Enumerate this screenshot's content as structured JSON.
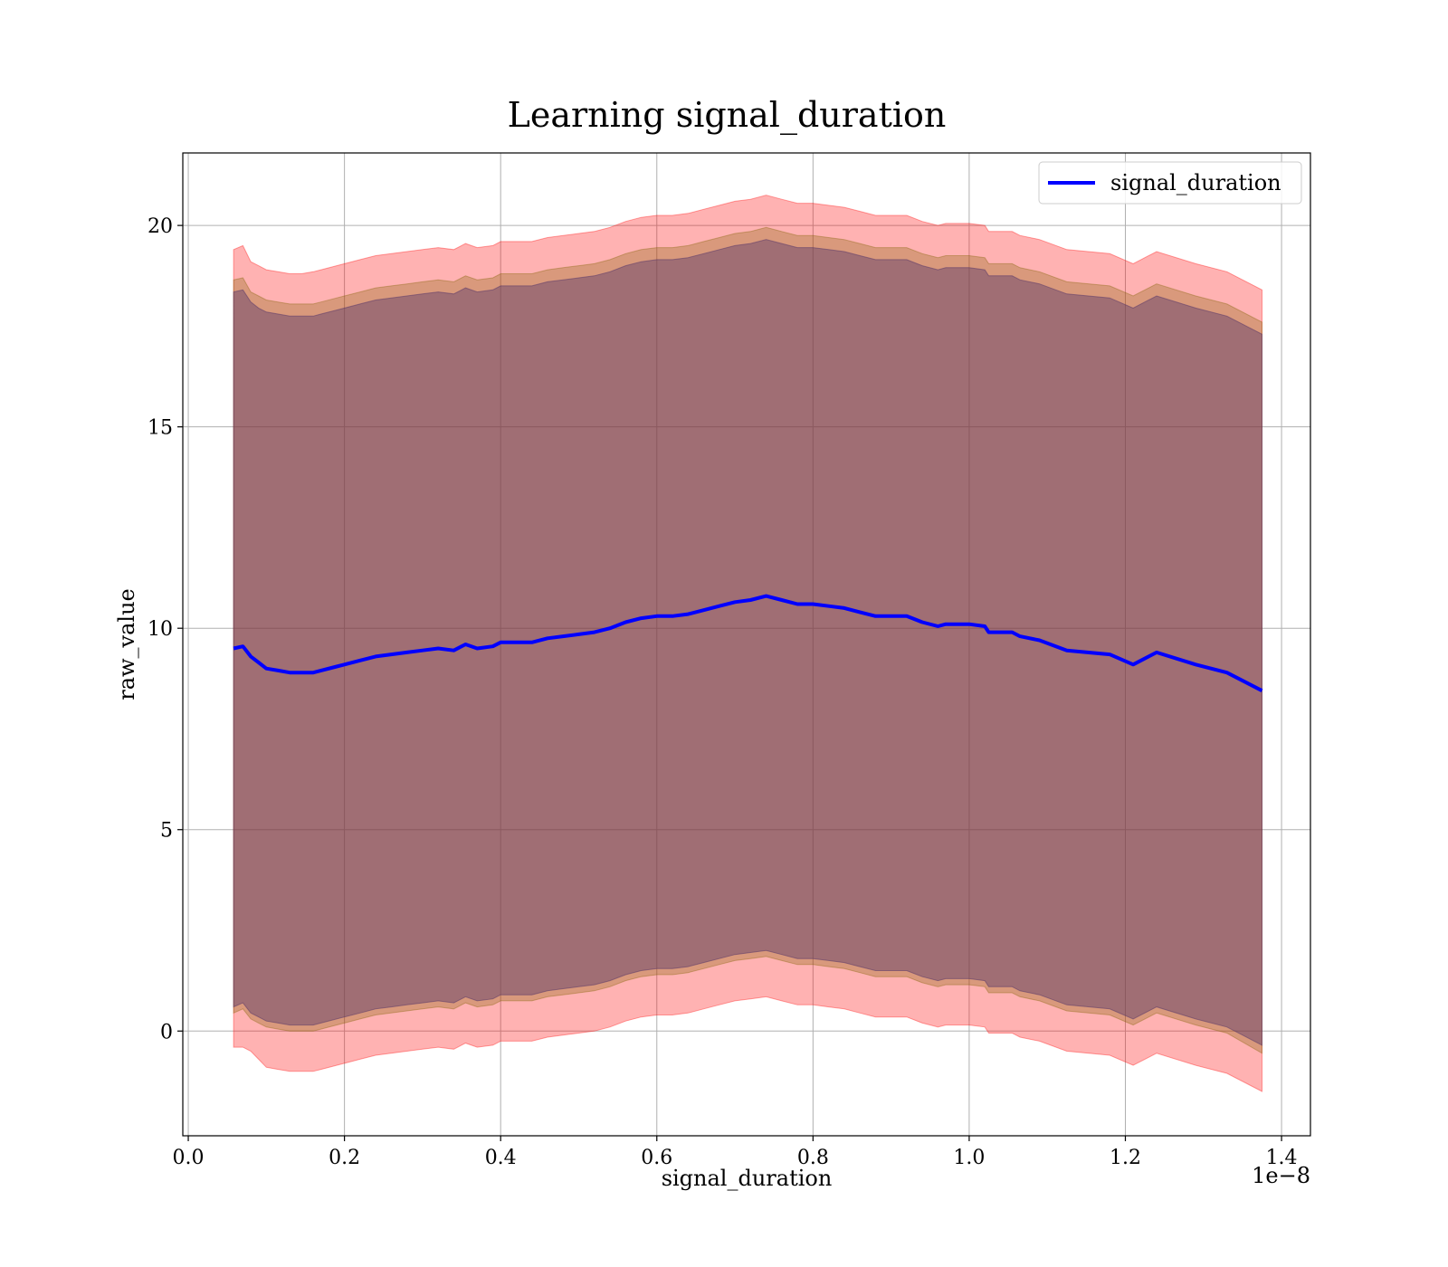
{
  "chart_data": {
    "type": "line",
    "title": "Learning signal_duration",
    "xlabel": "signal_duration",
    "ylabel": "raw_value",
    "x_scale_label": "1e−8",
    "x_scale_factor": 1e-08,
    "xlim": [
      -0.007,
      1.437
    ],
    "ylim": [
      -2.6,
      21.8
    ],
    "x_ticks": [
      0.0,
      0.2,
      0.4,
      0.6,
      0.8,
      1.0,
      1.2,
      1.4
    ],
    "x_tick_labels": [
      "0.0",
      "0.2",
      "0.4",
      "0.6",
      "0.8",
      "1.0",
      "1.2",
      "1.4"
    ],
    "y_ticks": [
      0,
      5,
      10,
      15,
      20
    ],
    "y_tick_labels": [
      "0",
      "5",
      "10",
      "15",
      "20"
    ],
    "grid": true,
    "legend": {
      "position": "top-right",
      "entries": [
        "signal_duration"
      ]
    },
    "colors": {
      "line": "#0000ff",
      "band_outer": "#ff0000",
      "band_middle": "#806000",
      "band_inner": "#5a3a6a",
      "grid": "#b0b0b0"
    },
    "x": [
      0.058,
      0.07,
      0.08,
      0.09,
      0.1,
      0.115,
      0.13,
      0.145,
      0.16,
      0.17,
      0.19,
      0.2,
      0.22,
      0.24,
      0.26,
      0.28,
      0.3,
      0.32,
      0.34,
      0.355,
      0.37,
      0.39,
      0.4,
      0.42,
      0.44,
      0.46,
      0.48,
      0.5,
      0.52,
      0.54,
      0.56,
      0.58,
      0.6,
      0.62,
      0.64,
      0.66,
      0.68,
      0.7,
      0.72,
      0.74,
      0.76,
      0.78,
      0.8,
      0.82,
      0.84,
      0.86,
      0.88,
      0.9,
      0.92,
      0.94,
      0.96,
      0.97,
      1.0,
      1.02,
      1.025,
      1.055,
      1.065,
      1.09,
      1.125,
      1.18,
      1.21,
      1.24,
      1.29,
      1.33,
      1.375
    ],
    "series": [
      {
        "name": "signal_duration",
        "values": [
          9.5,
          9.55,
          9.3,
          9.15,
          9.0,
          8.95,
          8.9,
          8.9,
          8.9,
          8.95,
          9.05,
          9.1,
          9.2,
          9.3,
          9.35,
          9.4,
          9.45,
          9.5,
          9.45,
          9.6,
          9.5,
          9.55,
          9.65,
          9.65,
          9.65,
          9.75,
          9.8,
          9.85,
          9.9,
          10.0,
          10.15,
          10.25,
          10.3,
          10.3,
          10.35,
          10.45,
          10.55,
          10.65,
          10.7,
          10.8,
          10.7,
          10.6,
          10.6,
          10.55,
          10.5,
          10.4,
          10.3,
          10.3,
          10.3,
          10.15,
          10.05,
          10.1,
          10.1,
          10.05,
          9.9,
          9.9,
          9.8,
          9.7,
          9.45,
          9.35,
          9.1,
          9.4,
          9.1,
          8.9,
          8.45
        ]
      }
    ],
    "bands": [
      {
        "upper": [
          19.4,
          19.5,
          19.1,
          19.0,
          18.9,
          18.85,
          18.8,
          18.8,
          18.85,
          18.9,
          19.0,
          19.05,
          19.15,
          19.25,
          19.3,
          19.35,
          19.4,
          19.45,
          19.4,
          19.55,
          19.45,
          19.5,
          19.6,
          19.6,
          19.6,
          19.7,
          19.75,
          19.8,
          19.85,
          19.95,
          20.1,
          20.2,
          20.25,
          20.25,
          20.3,
          20.4,
          20.5,
          20.6,
          20.65,
          20.75,
          20.65,
          20.55,
          20.55,
          20.5,
          20.45,
          20.35,
          20.25,
          20.25,
          20.25,
          20.1,
          20.0,
          20.05,
          20.05,
          20.0,
          19.85,
          19.85,
          19.75,
          19.65,
          19.4,
          19.3,
          19.05,
          19.35,
          19.05,
          18.85,
          18.4
        ],
        "lower": [
          -0.4,
          -0.4,
          -0.5,
          -0.7,
          -0.9,
          -0.95,
          -1.0,
          -1.0,
          -1.0,
          -0.95,
          -0.85,
          -0.8,
          -0.7,
          -0.6,
          -0.55,
          -0.5,
          -0.45,
          -0.4,
          -0.45,
          -0.3,
          -0.4,
          -0.35,
          -0.25,
          -0.25,
          -0.25,
          -0.15,
          -0.1,
          -0.05,
          0.0,
          0.1,
          0.25,
          0.35,
          0.4,
          0.4,
          0.45,
          0.55,
          0.65,
          0.75,
          0.8,
          0.85,
          0.75,
          0.65,
          0.65,
          0.6,
          0.55,
          0.45,
          0.35,
          0.35,
          0.35,
          0.2,
          0.1,
          0.15,
          0.15,
          0.1,
          -0.05,
          -0.05,
          -0.15,
          -0.25,
          -0.5,
          -0.6,
          -0.85,
          -0.55,
          -0.85,
          -1.05,
          -1.5
        ]
      },
      {
        "upper": [
          18.65,
          18.7,
          18.35,
          18.25,
          18.15,
          18.1,
          18.05,
          18.05,
          18.05,
          18.1,
          18.2,
          18.25,
          18.35,
          18.45,
          18.5,
          18.55,
          18.6,
          18.65,
          18.6,
          18.75,
          18.65,
          18.7,
          18.8,
          18.8,
          18.8,
          18.9,
          18.95,
          19.0,
          19.05,
          19.15,
          19.3,
          19.4,
          19.45,
          19.45,
          19.5,
          19.6,
          19.7,
          19.8,
          19.85,
          19.95,
          19.85,
          19.75,
          19.75,
          19.7,
          19.65,
          19.55,
          19.45,
          19.45,
          19.45,
          19.3,
          19.2,
          19.25,
          19.25,
          19.2,
          19.05,
          19.05,
          18.95,
          18.85,
          18.6,
          18.5,
          18.25,
          18.55,
          18.25,
          18.05,
          17.6
        ],
        "lower": [
          0.45,
          0.55,
          0.3,
          0.2,
          0.1,
          0.05,
          0.0,
          0.0,
          0.0,
          0.05,
          0.15,
          0.2,
          0.3,
          0.4,
          0.45,
          0.5,
          0.55,
          0.6,
          0.55,
          0.7,
          0.6,
          0.65,
          0.75,
          0.75,
          0.75,
          0.85,
          0.9,
          0.95,
          1.0,
          1.1,
          1.25,
          1.35,
          1.4,
          1.4,
          1.45,
          1.55,
          1.65,
          1.75,
          1.8,
          1.85,
          1.75,
          1.65,
          1.65,
          1.6,
          1.55,
          1.45,
          1.35,
          1.35,
          1.35,
          1.2,
          1.1,
          1.15,
          1.15,
          1.1,
          0.95,
          0.95,
          0.85,
          0.75,
          0.5,
          0.4,
          0.15,
          0.45,
          0.15,
          -0.05,
          -0.55
        ]
      },
      {
        "upper": [
          18.35,
          18.4,
          18.1,
          17.95,
          17.85,
          17.8,
          17.75,
          17.75,
          17.75,
          17.8,
          17.9,
          17.95,
          18.05,
          18.15,
          18.2,
          18.25,
          18.3,
          18.35,
          18.3,
          18.45,
          18.35,
          18.4,
          18.5,
          18.5,
          18.5,
          18.6,
          18.65,
          18.7,
          18.75,
          18.85,
          19.0,
          19.1,
          19.15,
          19.15,
          19.2,
          19.3,
          19.4,
          19.5,
          19.55,
          19.65,
          19.55,
          19.45,
          19.45,
          19.4,
          19.35,
          19.25,
          19.15,
          19.15,
          19.15,
          19.0,
          18.9,
          18.95,
          18.95,
          18.9,
          18.75,
          18.75,
          18.65,
          18.55,
          18.3,
          18.2,
          17.95,
          18.25,
          17.95,
          17.75,
          17.3
        ],
        "lower": [
          0.6,
          0.7,
          0.45,
          0.35,
          0.25,
          0.2,
          0.15,
          0.15,
          0.15,
          0.2,
          0.3,
          0.35,
          0.45,
          0.55,
          0.6,
          0.65,
          0.7,
          0.75,
          0.7,
          0.85,
          0.75,
          0.8,
          0.9,
          0.9,
          0.9,
          1.0,
          1.05,
          1.1,
          1.15,
          1.25,
          1.4,
          1.5,
          1.55,
          1.55,
          1.6,
          1.7,
          1.8,
          1.9,
          1.95,
          2.0,
          1.9,
          1.8,
          1.8,
          1.75,
          1.7,
          1.6,
          1.5,
          1.5,
          1.5,
          1.35,
          1.25,
          1.3,
          1.3,
          1.25,
          1.1,
          1.1,
          1.0,
          0.9,
          0.65,
          0.55,
          0.3,
          0.6,
          0.3,
          0.1,
          -0.35
        ]
      }
    ]
  }
}
